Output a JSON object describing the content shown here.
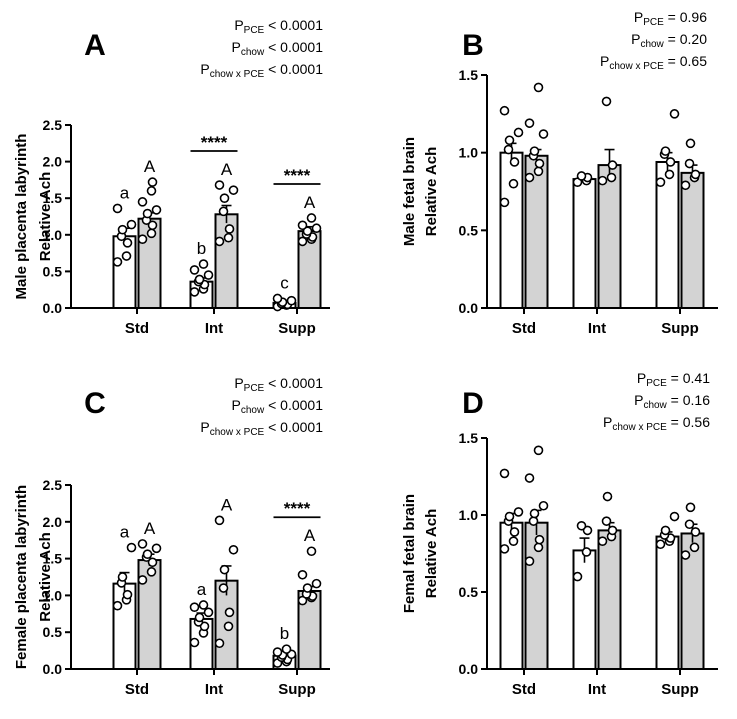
{
  "figure": {
    "panels": [
      "A",
      "B",
      "C",
      "D"
    ]
  },
  "chart_data": [
    {
      "type": "bar",
      "panel_letter": "A",
      "ylabel_lines": [
        "Male placenta labyrinth",
        "Relative Ach"
      ],
      "categories": [
        "Std",
        "Int",
        "Supp"
      ],
      "ylim": [
        0,
        2.5
      ],
      "yticks": [
        "0.0",
        "0.5",
        "1.0",
        "1.5",
        "2.0",
        "2.5"
      ],
      "series": [
        {
          "fill": "#ffffff",
          "values": [
            0.98,
            0.36,
            0.07
          ],
          "sem": [
            0.11,
            0.05,
            0.02
          ],
          "points": [
            [
              0.63,
              0.71,
              0.89,
              0.98,
              1.07,
              1.14,
              1.36
            ],
            [
              0.22,
              0.26,
              0.32,
              0.36,
              0.39,
              0.45,
              0.52,
              0.6
            ],
            [
              0.02,
              0.04,
              0.05,
              0.06,
              0.08,
              0.1,
              0.13
            ]
          ]
        },
        {
          "fill": "#d3d3d3",
          "values": [
            1.22,
            1.28,
            1.05
          ],
          "sem": [
            0.08,
            0.12,
            0.06
          ],
          "points": [
            [
              0.94,
              1.02,
              1.13,
              1.2,
              1.29,
              1.34,
              1.45,
              1.6,
              1.72
            ],
            [
              0.91,
              0.96,
              1.08,
              1.32,
              1.5,
              1.61,
              1.68
            ],
            [
              0.91,
              0.94,
              0.97,
              1.01,
              1.05,
              1.09,
              1.13,
              1.23
            ]
          ]
        }
      ],
      "letters": [
        [
          "a",
          "b",
          "c"
        ],
        [
          "A",
          "A",
          "A"
        ]
      ],
      "sig_brackets": [
        {
          "category": "Int",
          "label": "****"
        },
        {
          "category": "Supp",
          "label": "****"
        }
      ],
      "stats": [
        {
          "p": "P",
          "sub": "PCE",
          "rest": " < 0.0001"
        },
        {
          "p": "P",
          "sub": "chow",
          "rest": " < 0.0001"
        },
        {
          "p": "P",
          "sub": "chow x PCE",
          "rest": " < 0.0001"
        }
      ]
    },
    {
      "type": "bar",
      "panel_letter": "B",
      "ylabel_lines": [
        "Male fetal brain",
        "Relative Ach"
      ],
      "categories": [
        "Std",
        "Int",
        "Supp"
      ],
      "ylim": [
        0,
        1.5
      ],
      "yticks": [
        "0.0",
        "0.5",
        "1.0",
        "1.5"
      ],
      "series": [
        {
          "fill": "#ffffff",
          "values": [
            1.0,
            0.83,
            0.94
          ],
          "sem": [
            0.06,
            0.02,
            0.06
          ],
          "points": [
            [
              0.68,
              0.8,
              0.94,
              1.02,
              1.08,
              1.13,
              1.27
            ],
            [
              0.81,
              0.82,
              0.84,
              0.85
            ],
            [
              0.81,
              0.86,
              0.94,
              0.99,
              1.01,
              1.25
            ]
          ]
        },
        {
          "fill": "#d3d3d3",
          "values": [
            0.98,
            0.92,
            0.87
          ],
          "sem": [
            0.04,
            0.1,
            0.05
          ],
          "points": [
            [
              0.84,
              0.88,
              0.93,
              0.98,
              1.01,
              1.12,
              1.19,
              1.42
            ],
            [
              0.82,
              0.84,
              0.92,
              1.33
            ],
            [
              0.79,
              0.84,
              0.86,
              0.93,
              1.06
            ]
          ]
        }
      ],
      "letters": [],
      "sig_brackets": [],
      "stats": [
        {
          "p": "P",
          "sub": "PCE",
          "rest": " = 0.96"
        },
        {
          "p": "P",
          "sub": "chow",
          "rest": " = 0.20"
        },
        {
          "p": "P",
          "sub": "chow x PCE",
          "rest": " = 0.65"
        }
      ]
    },
    {
      "type": "bar",
      "panel_letter": "C",
      "ylabel_lines": [
        "Female placenta labyrinth",
        "Relative Ach"
      ],
      "categories": [
        "Std",
        "Int",
        "Supp"
      ],
      "ylim": [
        0,
        2.5
      ],
      "yticks": [
        "0.0",
        "0.5",
        "1.0",
        "1.5",
        "2.0",
        "2.5"
      ],
      "series": [
        {
          "fill": "#ffffff",
          "values": [
            1.16,
            0.68,
            0.18
          ],
          "sem": [
            0.15,
            0.08,
            0.03
          ],
          "points": [
            [
              0.86,
              0.94,
              1.01,
              1.17,
              1.25,
              1.65
            ],
            [
              0.36,
              0.49,
              0.58,
              0.64,
              0.7,
              0.77,
              0.84,
              0.87
            ],
            [
              0.08,
              0.1,
              0.13,
              0.16,
              0.19,
              0.2,
              0.23,
              0.27
            ]
          ]
        },
        {
          "fill": "#d3d3d3",
          "values": [
            1.48,
            1.2,
            1.06
          ],
          "sem": [
            0.08,
            0.2,
            0.06
          ],
          "points": [
            [
              1.21,
              1.32,
              1.45,
              1.52,
              1.56,
              1.64,
              1.7
            ],
            [
              0.35,
              0.58,
              0.77,
              1.1,
              1.35,
              1.62,
              2.02
            ],
            [
              0.93,
              0.97,
              0.99,
              1.02,
              1.1,
              1.16,
              1.28,
              1.6
            ]
          ]
        }
      ],
      "letters": [
        [
          "a",
          "a",
          "b"
        ],
        [
          "A",
          "A",
          "A"
        ]
      ],
      "sig_brackets": [
        {
          "category": "Supp",
          "label": "****"
        }
      ],
      "stats": [
        {
          "p": "P",
          "sub": "PCE",
          "rest": " < 0.0001"
        },
        {
          "p": "P",
          "sub": "chow",
          "rest": " < 0.0001"
        },
        {
          "p": "P",
          "sub": "chow x PCE",
          "rest": " < 0.0001"
        }
      ]
    },
    {
      "type": "bar",
      "panel_letter": "D",
      "ylabel_lines": [
        "Femal fetal brain",
        "Relative Ach"
      ],
      "categories": [
        "Std",
        "Int",
        "Supp"
      ],
      "ylim": [
        0,
        1.5
      ],
      "yticks": [
        "0.0",
        "0.5",
        "1.0",
        "1.5"
      ],
      "series": [
        {
          "fill": "#ffffff",
          "values": [
            0.95,
            0.77,
            0.86
          ],
          "sem": [
            0.06,
            0.08,
            0.03
          ],
          "points": [
            [
              0.78,
              0.83,
              0.89,
              0.96,
              0.99,
              1.02,
              1.27
            ],
            [
              0.6,
              0.76,
              0.9,
              0.93
            ],
            [
              0.81,
              0.83,
              0.85,
              0.87,
              0.9,
              0.99
            ]
          ]
        },
        {
          "fill": "#d3d3d3",
          "values": [
            0.95,
            0.9,
            0.88
          ],
          "sem": [
            0.08,
            0.05,
            0.06
          ],
          "points": [
            [
              0.7,
              0.79,
              0.84,
              0.96,
              1.01,
              1.06,
              1.24,
              1.42
            ],
            [
              0.83,
              0.86,
              0.9,
              0.96,
              1.12
            ],
            [
              0.74,
              0.79,
              0.89,
              0.94,
              1.05
            ]
          ]
        }
      ],
      "letters": [],
      "sig_brackets": [],
      "stats": [
        {
          "p": "P",
          "sub": "PCE",
          "rest": " = 0.41"
        },
        {
          "p": "P",
          "sub": "chow",
          "rest": " = 0.16"
        },
        {
          "p": "P",
          "sub": "chow x PCE",
          "rest": " = 0.56"
        }
      ]
    }
  ]
}
